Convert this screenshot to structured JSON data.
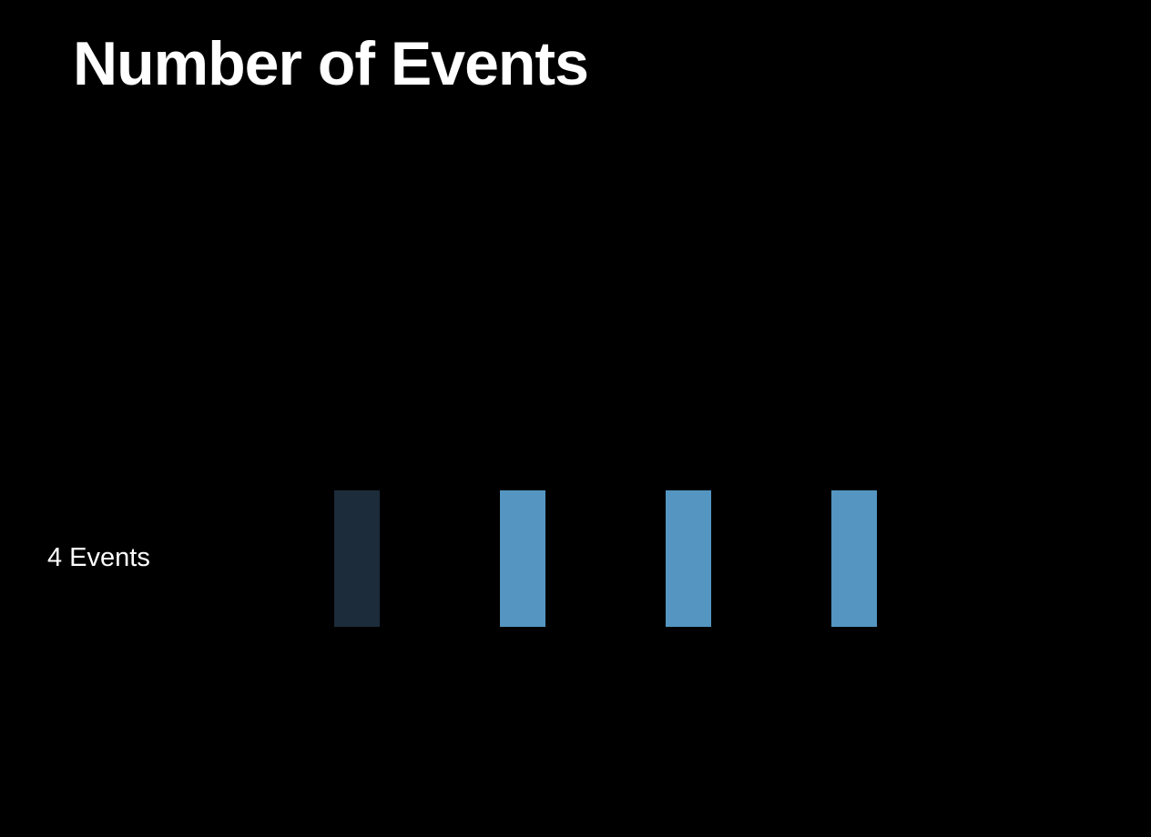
{
  "title": "Number of Events",
  "row": {
    "label": "4 Events"
  },
  "events": [
    {
      "state": "dim"
    },
    {
      "state": "active"
    },
    {
      "state": "active"
    },
    {
      "state": "active"
    }
  ],
  "colors": {
    "background": "#000000",
    "text": "#ffffff",
    "bar_active": "#5496c1",
    "bar_dim": "#1c2c3a"
  }
}
